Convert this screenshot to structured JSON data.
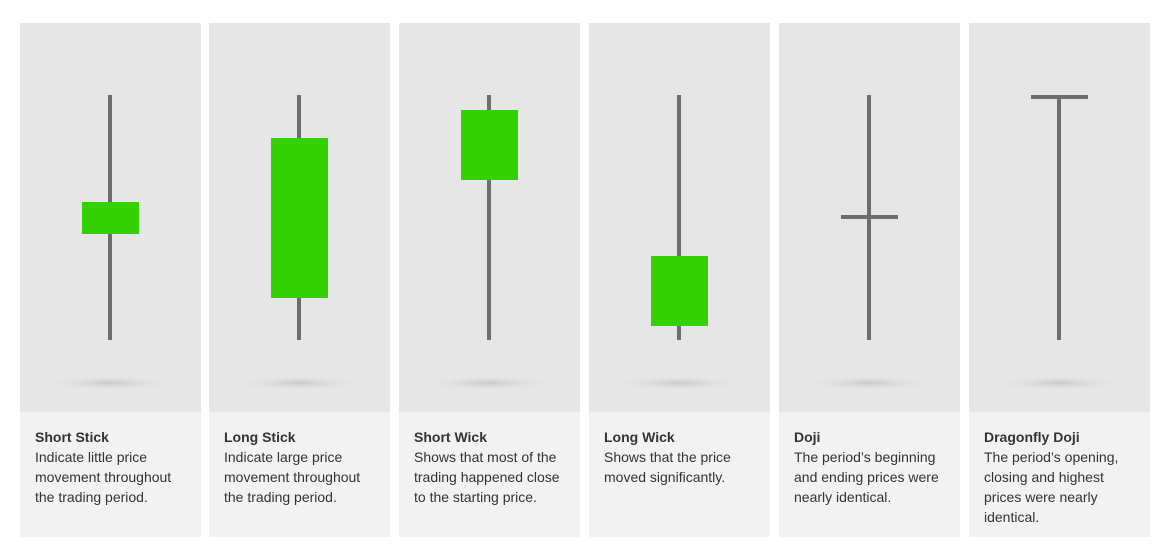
{
  "cards": [
    {
      "title": "Short Stick",
      "description": "Indicate little price movement throughout the trading period."
    },
    {
      "title": "Long Stick",
      "description": "Indicate large price movement throughout the trading period."
    },
    {
      "title": "Short Wick",
      "description": "Shows that most of the trading happened close to the starting price."
    },
    {
      "title": "Long Wick",
      "description": "Shows that the price moved significantly."
    },
    {
      "title": "Doji",
      "description": "The period’s beginning and ending prices were nearly identical."
    },
    {
      "title": "Dragonfly Doji",
      "description": "The period’s opening, closing and highest prices were nearly identical."
    }
  ]
}
